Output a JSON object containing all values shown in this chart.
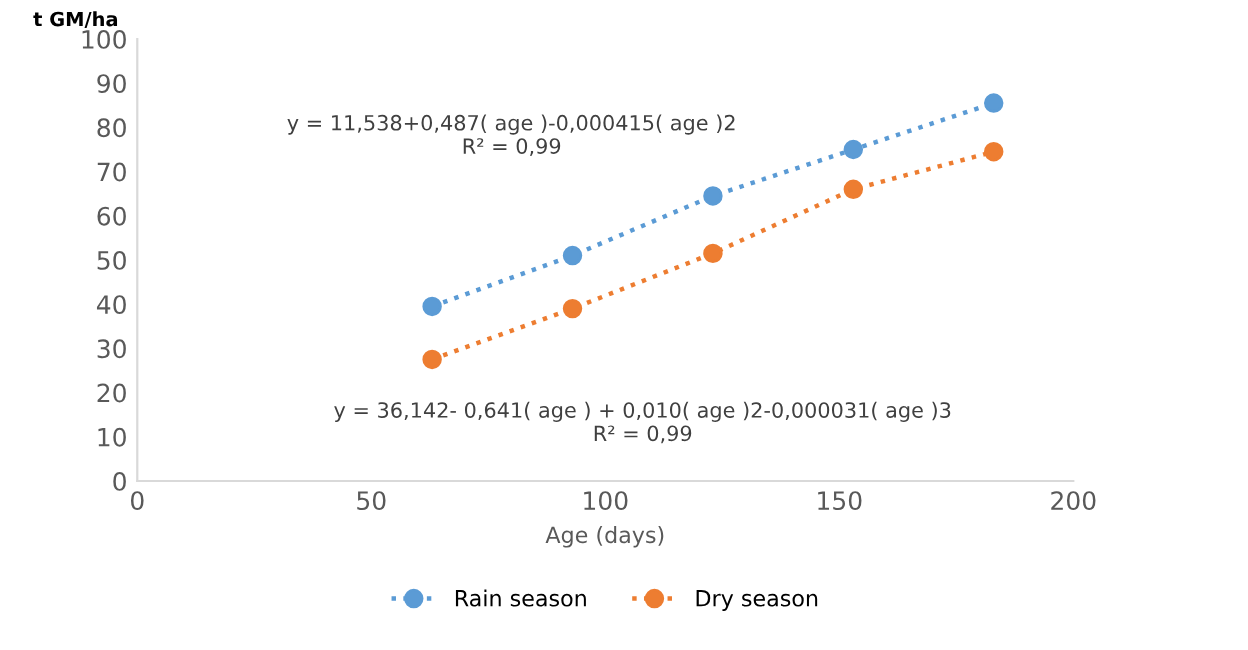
{
  "chart_data": {
    "type": "line",
    "ylabel": "t GM/ha",
    "xlabel": "Age (days)",
    "xlim": [
      0,
      200
    ],
    "xticks": [
      0,
      50,
      100,
      150,
      200
    ],
    "ylim": [
      0,
      100
    ],
    "yticks": [
      0,
      10,
      20,
      30,
      40,
      50,
      60,
      70,
      80,
      90,
      100
    ],
    "x": [
      63,
      93,
      123,
      153,
      183
    ],
    "series": [
      {
        "name": "Rain season",
        "color": "#5b9bd5",
        "values": [
          39.5,
          51,
          64.5,
          75,
          85.5
        ]
      },
      {
        "name": "Dry season",
        "color": "#ed7d31",
        "values": [
          27.5,
          39,
          51.5,
          66,
          74.5
        ]
      }
    ],
    "marker": "circle",
    "line_style": "dotted",
    "grid": false,
    "legend": "bottom",
    "annotations": [
      "y = 11,538+0,487( age )-0,000415( age )2\nR² = 0,99",
      "y = 36,142- 0,641( age ) + 0,010( age )2-0,000031( age )3\nR² = 0,99"
    ]
  }
}
